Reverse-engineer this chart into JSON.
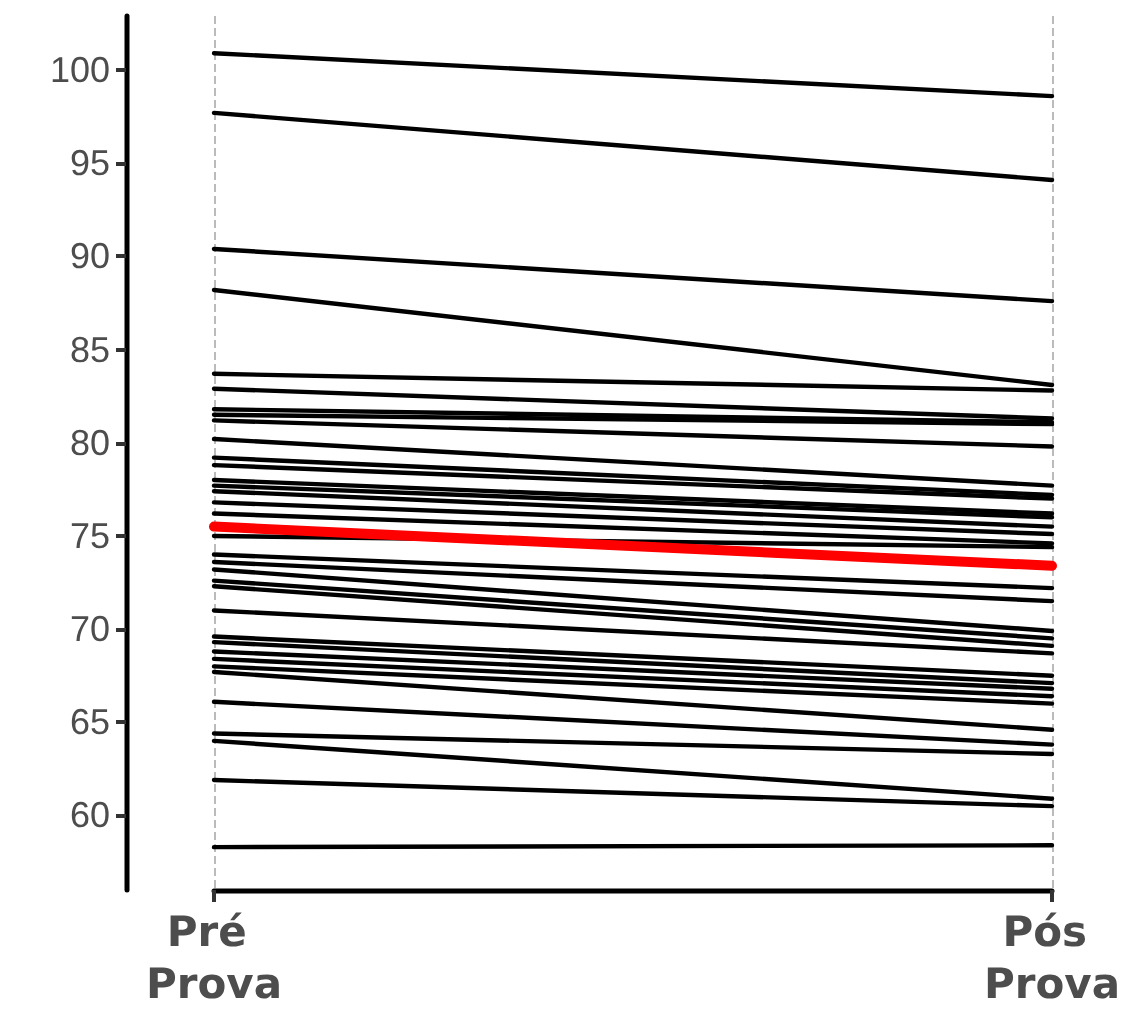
{
  "chart_data": {
    "type": "line",
    "categories": [
      "Pré Prova",
      "Pós Prova"
    ],
    "series": [
      {
        "color": "#000000",
        "values": [
          100.9,
          98.6
        ]
      },
      {
        "color": "#000000",
        "values": [
          97.7,
          94.1
        ]
      },
      {
        "color": "#000000",
        "values": [
          90.4,
          87.6
        ]
      },
      {
        "color": "#000000",
        "values": [
          88.2,
          83.1
        ]
      },
      {
        "color": "#000000",
        "values": [
          83.7,
          82.8
        ]
      },
      {
        "color": "#000000",
        "values": [
          82.9,
          81.3
        ]
      },
      {
        "color": "#000000",
        "values": [
          81.8,
          81.1
        ]
      },
      {
        "color": "#000000",
        "values": [
          81.5,
          81.0
        ]
      },
      {
        "color": "#000000",
        "values": [
          81.2,
          79.8
        ]
      },
      {
        "color": "#000000",
        "values": [
          80.2,
          77.7
        ]
      },
      {
        "color": "#000000",
        "values": [
          79.2,
          77.2
        ]
      },
      {
        "color": "#000000",
        "values": [
          78.8,
          77.0
        ]
      },
      {
        "color": "#000000",
        "values": [
          78.0,
          76.2
        ]
      },
      {
        "color": "#000000",
        "values": [
          77.7,
          76.0
        ]
      },
      {
        "color": "#000000",
        "values": [
          77.4,
          75.5
        ]
      },
      {
        "color": "#000000",
        "values": [
          76.8,
          75.1
        ]
      },
      {
        "color": "#000000",
        "values": [
          76.2,
          74.6
        ]
      },
      {
        "color": "#000000",
        "values": [
          75.0,
          74.4
        ]
      },
      {
        "color": "#000000",
        "values": [
          74.0,
          72.2
        ]
      },
      {
        "color": "#000000",
        "values": [
          73.6,
          71.5
        ]
      },
      {
        "color": "#000000",
        "values": [
          73.2,
          69.9
        ]
      },
      {
        "color": "#000000",
        "values": [
          72.6,
          69.5
        ]
      },
      {
        "color": "#000000",
        "values": [
          72.3,
          69.1
        ]
      },
      {
        "color": "#000000",
        "values": [
          71.0,
          68.7
        ]
      },
      {
        "color": "#000000",
        "values": [
          69.6,
          67.5
        ]
      },
      {
        "color": "#000000",
        "values": [
          69.3,
          67.1
        ]
      },
      {
        "color": "#000000",
        "values": [
          68.8,
          66.8
        ]
      },
      {
        "color": "#000000",
        "values": [
          68.4,
          66.4
        ]
      },
      {
        "color": "#000000",
        "values": [
          68.0,
          66.0
        ]
      },
      {
        "color": "#000000",
        "values": [
          67.7,
          64.6
        ]
      },
      {
        "color": "#000000",
        "values": [
          66.1,
          63.8
        ]
      },
      {
        "color": "#000000",
        "values": [
          64.4,
          63.3
        ]
      },
      {
        "color": "#000000",
        "values": [
          64.0,
          60.9
        ]
      },
      {
        "color": "#000000",
        "values": [
          61.9,
          60.5
        ]
      },
      {
        "color": "#000000",
        "values": [
          58.3,
          58.4
        ]
      },
      {
        "color": "#ff0000",
        "values": [
          75.5,
          73.4
        ]
      }
    ],
    "ylim": [
      56,
      102.9
    ],
    "yticks": [
      60,
      65,
      70,
      75,
      80,
      85,
      90,
      95,
      100
    ],
    "grid": "x",
    "marker": "none",
    "line_style": "solid"
  }
}
